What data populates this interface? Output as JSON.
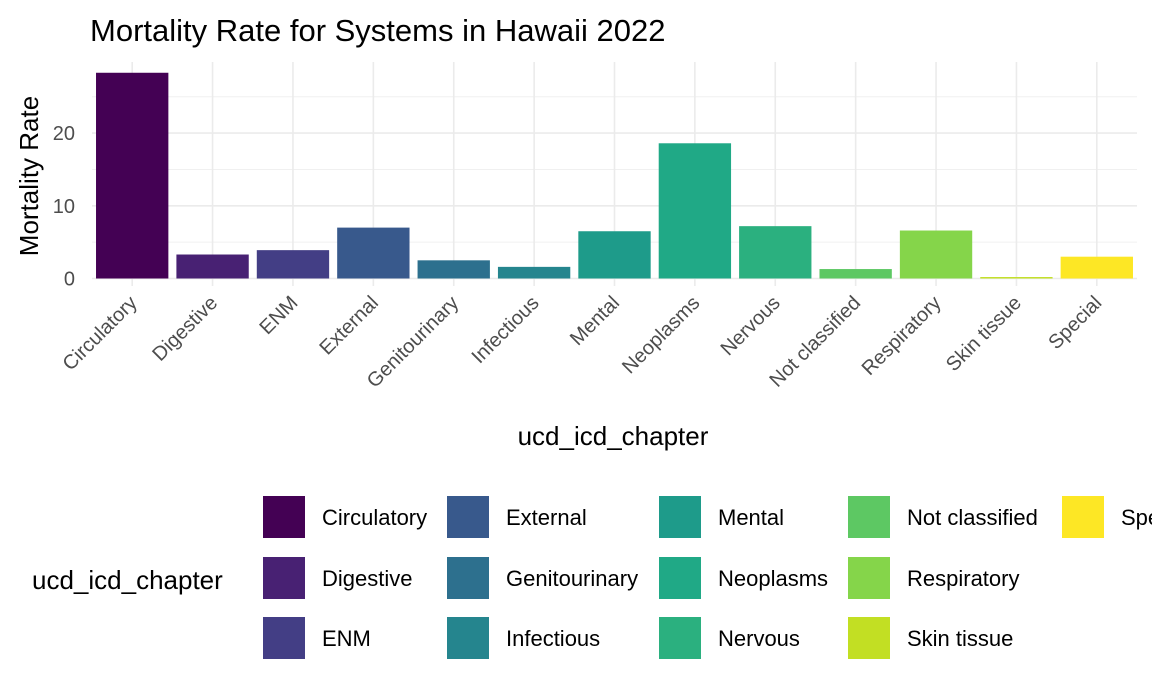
{
  "chart_data": {
    "type": "bar",
    "title": "Mortality Rate for Systems in Hawaii 2022",
    "xlabel": "ucd_icd_chapter",
    "ylabel": "Mortality Rate",
    "ylim": [
      0,
      29.8
    ],
    "yticks": [
      0,
      10,
      20
    ],
    "grid": true,
    "legend_title": "ucd_icd_chapter",
    "legend_position": "bottom",
    "categories": [
      "Circulatory",
      "Digestive",
      "ENM",
      "External",
      "Genitourinary",
      "Infectious",
      "Mental",
      "Neoplasms",
      "Nervous",
      "Not classified",
      "Respiratory",
      "Skin tissue",
      "Special"
    ],
    "values": [
      28.3,
      3.3,
      3.9,
      7.0,
      2.5,
      1.6,
      6.5,
      18.6,
      7.2,
      1.3,
      6.6,
      0.2,
      3.0
    ],
    "colors": [
      "#440154",
      "#482173",
      "#433E85",
      "#38598C",
      "#2D708E",
      "#25858E",
      "#1E9B8A",
      "#20A986",
      "#2BB07F",
      "#5DC863",
      "#85D54A",
      "#C2DF23",
      "#FDE725"
    ]
  }
}
